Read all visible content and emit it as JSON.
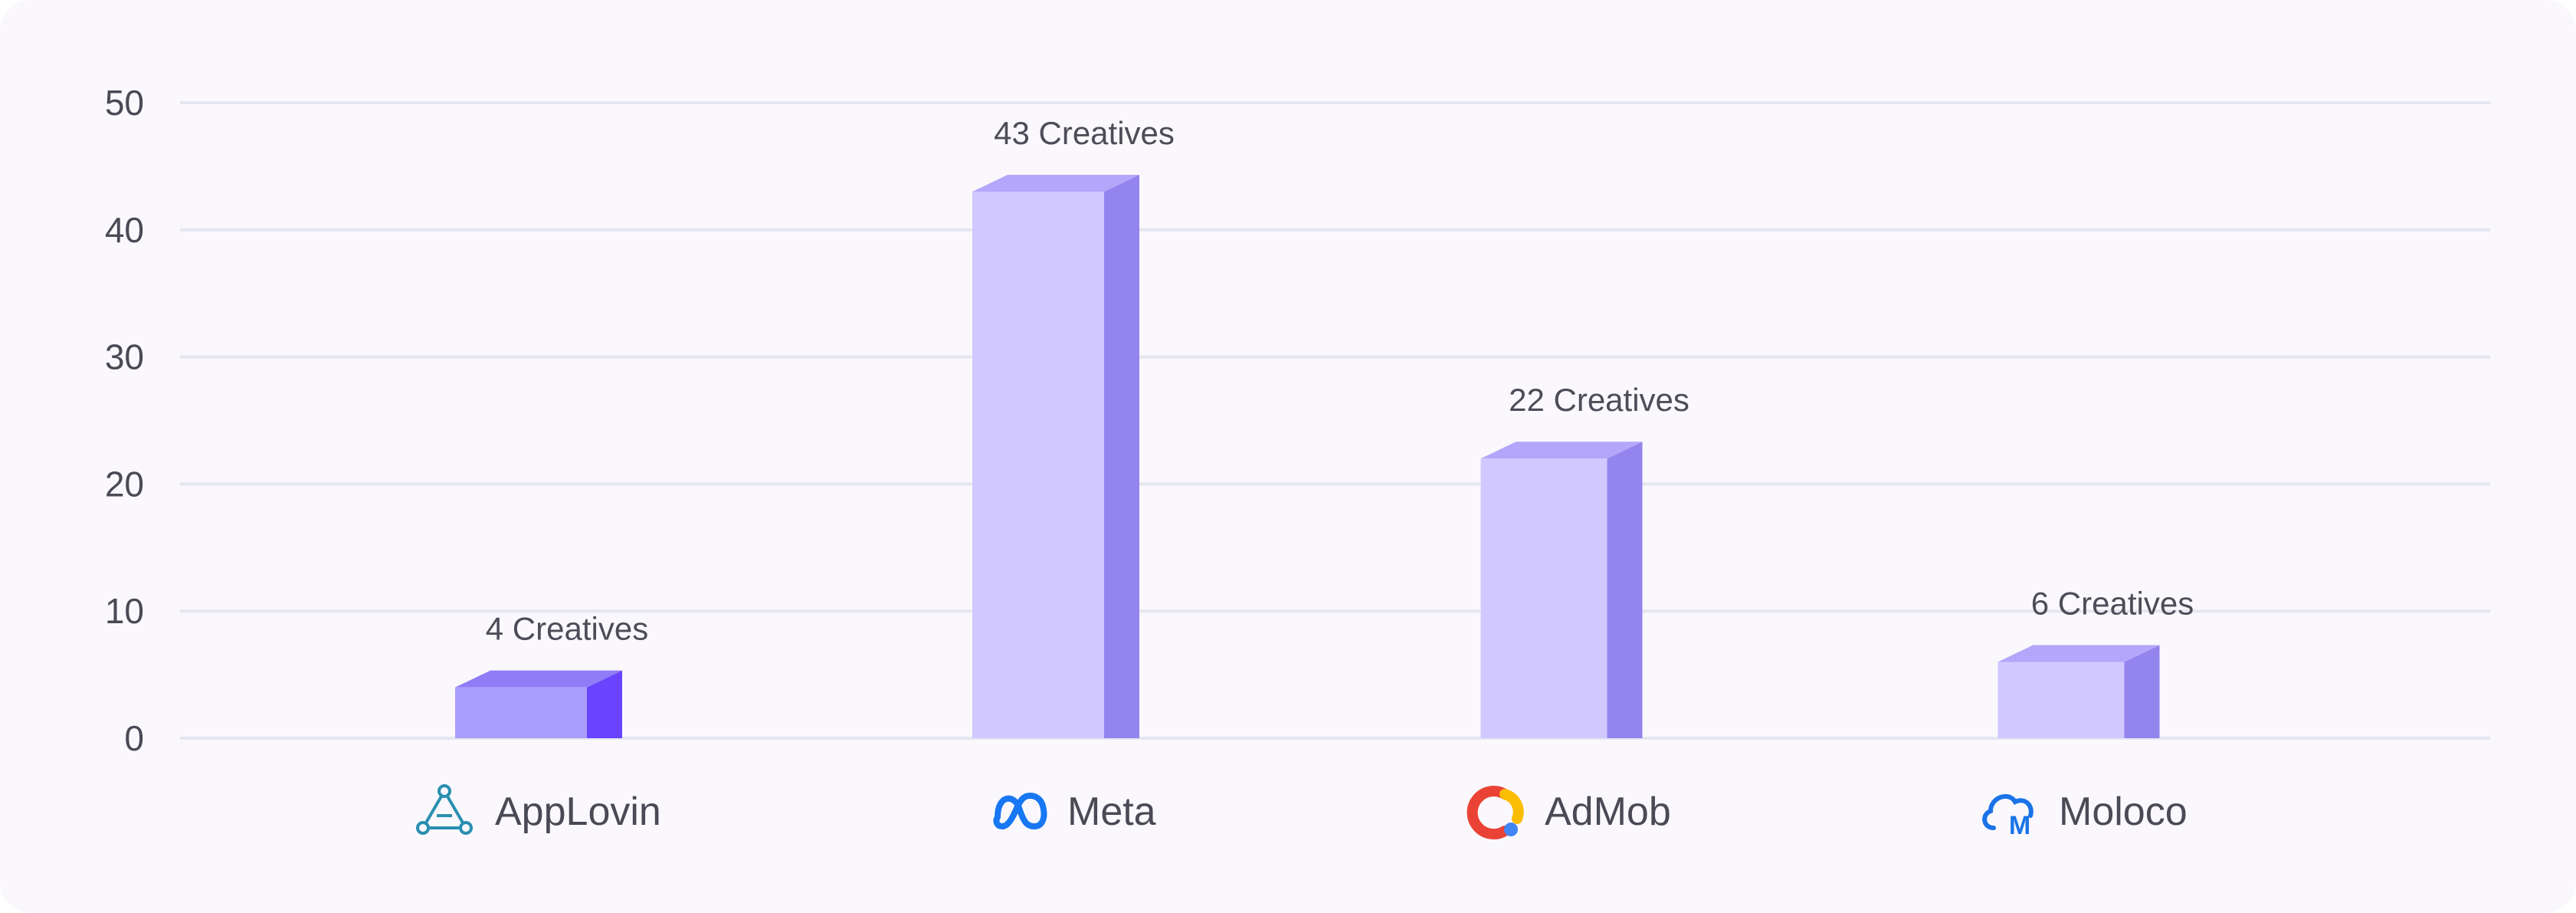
{
  "chart_data": {
    "type": "bar",
    "categories": [
      "AppLovin",
      "Meta",
      "AdMob",
      "Moloco"
    ],
    "category_icons": [
      "applovin-icon",
      "meta-icon",
      "admob-icon",
      "moloco-icon"
    ],
    "values": [
      4,
      43,
      22,
      6
    ],
    "data_labels": [
      "4 Creatives",
      "43 Creatives",
      "22 Creatives",
      "6 Creatives"
    ],
    "ylim": [
      0,
      50
    ],
    "yticks": [
      "0",
      "10",
      "20",
      "30",
      "40",
      "50"
    ],
    "grid": true,
    "title": "",
    "xlabel": "",
    "ylabel": "",
    "colors": {
      "background": "#faf8fd",
      "grid": "#e4e7f0",
      "highlight_front": "#ab9dfd",
      "highlight_top": "#8f7cf6",
      "highlight_side": "#6a43ff",
      "bar_front": "#d0c8ff",
      "bar_top": "#b4a6fa",
      "bar_side": "#9484ee"
    },
    "highlighted_category": "AppLovin"
  }
}
